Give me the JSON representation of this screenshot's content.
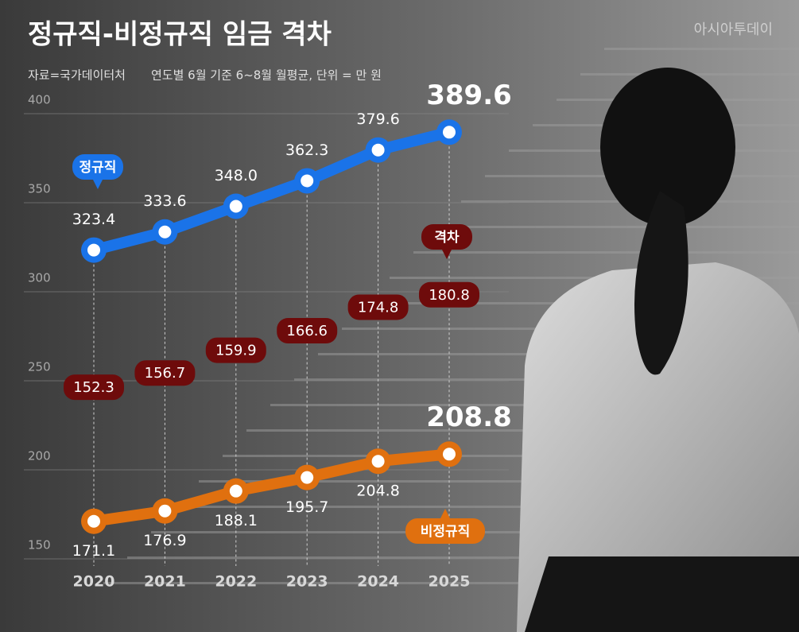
{
  "chart_data": {
    "type": "line",
    "title": "정규직-비정규직 임금 격차",
    "source": "자료=국가데이터처",
    "note": "연도별 6월 기준 6~8월 월평균, 단위 = 만 원",
    "logo": "아시아투데이",
    "categories": [
      "2020",
      "2021",
      "2022",
      "2023",
      "2024",
      "2025"
    ],
    "series": [
      {
        "name": "정규직",
        "color": "#1a73e8",
        "values": [
          323.4,
          333.6,
          348.0,
          362.3,
          379.6,
          389.6
        ],
        "value_labels": [
          "323.4",
          "333.6",
          "348.0",
          "362.3",
          "379.6",
          "389.6"
        ]
      },
      {
        "name": "비정규직",
        "color": "#e0700f",
        "values": [
          171.1,
          176.9,
          188.1,
          195.7,
          204.8,
          208.8
        ],
        "value_labels": [
          "171.1",
          "176.9",
          "188.1",
          "195.7",
          "204.8",
          "208.8"
        ]
      }
    ],
    "gap": {
      "name": "격차",
      "color": "#6e0b0b",
      "values": [
        152.3,
        156.7,
        159.9,
        166.6,
        174.8,
        180.8
      ]
    },
    "ylim": [
      150,
      400
    ],
    "yticks": [
      150,
      200,
      250,
      300,
      350,
      400
    ],
    "grid": true
  }
}
